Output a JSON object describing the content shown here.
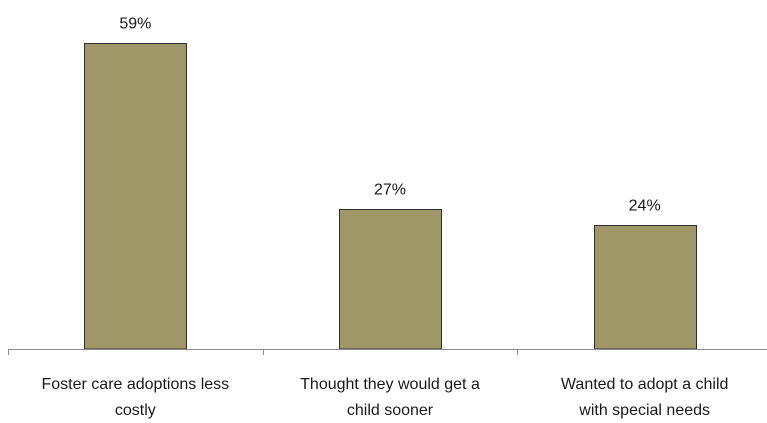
{
  "chart_data": {
    "type": "bar",
    "categories": [
      [
        "Foster care adoptions  less",
        "costly"
      ],
      [
        "Thought they would get a",
        "child sooner"
      ],
      [
        "Wanted to adopt a child",
        "with special needs"
      ]
    ],
    "values": [
      59,
      27,
      24
    ],
    "value_labels": [
      "59%",
      "27%",
      "24%"
    ],
    "unit": "%",
    "ylim": [
      0,
      70
    ],
    "grid": false,
    "legend": "none",
    "bar_color": "#a09768",
    "bar_edge_color": "#2f2f2f",
    "axis_color": "#8c8c8c",
    "title": "",
    "xlabel": "",
    "ylabel": ""
  }
}
